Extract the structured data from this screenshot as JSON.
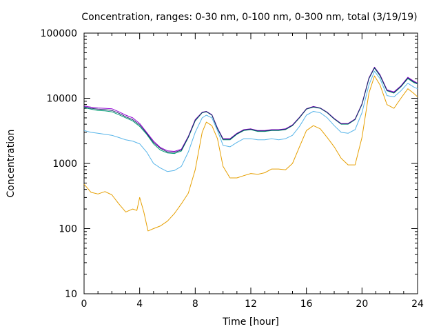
{
  "chart_data": {
    "type": "line",
    "title": "Concentration, ranges: 0-30 nm, 0-100 nm, 0-300 nm, total (3/19/19)",
    "xlabel": "Time [hour]",
    "ylabel": "Concentration",
    "xlim": [
      0,
      24
    ],
    "ylim": [
      10,
      100000
    ],
    "yscale": "log",
    "grid": false,
    "x_ticks": [
      0,
      4,
      8,
      12,
      16,
      20,
      24
    ],
    "x_tick_labels": [
      "0",
      "4",
      "8",
      "12",
      "16",
      "20",
      "24"
    ],
    "y_ticks": [
      10,
      100,
      1000,
      10000,
      100000
    ],
    "y_tick_labels": [
      "10",
      "100",
      "1000",
      "10000",
      "100000"
    ],
    "series": [
      {
        "color": "#e69f00",
        "points": [
          [
            0,
            480
          ],
          [
            0.5,
            360
          ],
          [
            1,
            340
          ],
          [
            1.5,
            370
          ],
          [
            2,
            330
          ],
          [
            2.5,
            240
          ],
          [
            3,
            180
          ],
          [
            3.5,
            200
          ],
          [
            3.8,
            190
          ],
          [
            4,
            300
          ],
          [
            4.3,
            180
          ],
          [
            4.6,
            92
          ],
          [
            5,
            100
          ],
          [
            5.5,
            110
          ],
          [
            6,
            130
          ],
          [
            6.5,
            170
          ],
          [
            7,
            240
          ],
          [
            7.5,
            350
          ],
          [
            8,
            800
          ],
          [
            8.5,
            3000
          ],
          [
            8.8,
            4300
          ],
          [
            9.2,
            3800
          ],
          [
            9.6,
            2400
          ],
          [
            10,
            900
          ],
          [
            10.5,
            600
          ],
          [
            11,
            600
          ],
          [
            11.5,
            650
          ],
          [
            12,
            700
          ],
          [
            12.5,
            680
          ],
          [
            13,
            720
          ],
          [
            13.5,
            820
          ],
          [
            14,
            820
          ],
          [
            14.5,
            800
          ],
          [
            15,
            1000
          ],
          [
            15.5,
            1800
          ],
          [
            16,
            3200
          ],
          [
            16.5,
            3800
          ],
          [
            17,
            3400
          ],
          [
            17.5,
            2500
          ],
          [
            18,
            1800
          ],
          [
            18.5,
            1200
          ],
          [
            19,
            950
          ],
          [
            19.5,
            950
          ],
          [
            20,
            2500
          ],
          [
            20.5,
            12000
          ],
          [
            20.9,
            22000
          ],
          [
            21.3,
            16000
          ],
          [
            21.8,
            8000
          ],
          [
            22.3,
            7000
          ],
          [
            22.8,
            10000
          ],
          [
            23.3,
            14000
          ],
          [
            23.7,
            12000
          ],
          [
            24,
            10500
          ]
        ]
      },
      {
        "color": "#56b4e9",
        "points": [
          [
            0,
            3200
          ],
          [
            0.5,
            3000
          ],
          [
            1,
            2900
          ],
          [
            1.5,
            2800
          ],
          [
            2,
            2700
          ],
          [
            2.5,
            2500
          ],
          [
            3,
            2300
          ],
          [
            3.5,
            2200
          ],
          [
            4,
            2000
          ],
          [
            4.5,
            1500
          ],
          [
            5,
            1000
          ],
          [
            5.5,
            850
          ],
          [
            6,
            750
          ],
          [
            6.5,
            780
          ],
          [
            7,
            900
          ],
          [
            7.5,
            1500
          ],
          [
            8,
            3000
          ],
          [
            8.5,
            5000
          ],
          [
            8.8,
            5500
          ],
          [
            9.2,
            5000
          ],
          [
            9.6,
            3200
          ],
          [
            10,
            1900
          ],
          [
            10.5,
            1800
          ],
          [
            11,
            2100
          ],
          [
            11.5,
            2400
          ],
          [
            12,
            2400
          ],
          [
            12.5,
            2300
          ],
          [
            13,
            2300
          ],
          [
            13.5,
            2400
          ],
          [
            14,
            2300
          ],
          [
            14.5,
            2400
          ],
          [
            15,
            2700
          ],
          [
            15.5,
            3700
          ],
          [
            16,
            5500
          ],
          [
            16.5,
            6300
          ],
          [
            17,
            6000
          ],
          [
            17.5,
            5000
          ],
          [
            18,
            3800
          ],
          [
            18.5,
            3000
          ],
          [
            19,
            2900
          ],
          [
            19.5,
            3300
          ],
          [
            20,
            6000
          ],
          [
            20.5,
            16000
          ],
          [
            20.9,
            26000
          ],
          [
            21.3,
            20000
          ],
          [
            21.8,
            11000
          ],
          [
            22.3,
            10500
          ],
          [
            22.8,
            13000
          ],
          [
            23.3,
            17000
          ],
          [
            23.7,
            15000
          ],
          [
            24,
            14000
          ]
        ]
      },
      {
        "color": "#009e73",
        "points": [
          [
            0,
            7200
          ],
          [
            0.5,
            6800
          ],
          [
            1,
            6500
          ],
          [
            1.5,
            6400
          ],
          [
            2,
            6200
          ],
          [
            2.5,
            5600
          ],
          [
            3,
            5000
          ],
          [
            3.5,
            4500
          ],
          [
            4,
            3700
          ],
          [
            4.5,
            2800
          ],
          [
            5,
            2000
          ],
          [
            5.5,
            1600
          ],
          [
            6,
            1450
          ],
          [
            6.5,
            1420
          ],
          [
            7,
            1550
          ],
          [
            7.5,
            2500
          ],
          [
            8,
            4500
          ],
          [
            8.5,
            6000
          ],
          [
            8.8,
            6200
          ],
          [
            9.2,
            5500
          ],
          [
            9.6,
            3400
          ],
          [
            10,
            2300
          ],
          [
            10.5,
            2300
          ],
          [
            11,
            2800
          ],
          [
            11.5,
            3200
          ],
          [
            12,
            3300
          ],
          [
            12.5,
            3100
          ],
          [
            13,
            3100
          ],
          [
            13.5,
            3200
          ],
          [
            14,
            3200
          ],
          [
            14.5,
            3300
          ],
          [
            15,
            3800
          ],
          [
            15.5,
            5000
          ],
          [
            16,
            6800
          ],
          [
            16.5,
            7300
          ],
          [
            17,
            7000
          ],
          [
            17.5,
            6000
          ],
          [
            18,
            4800
          ],
          [
            18.5,
            4000
          ],
          [
            19,
            4000
          ],
          [
            19.5,
            4700
          ],
          [
            20,
            8000
          ],
          [
            20.5,
            20000
          ],
          [
            20.9,
            29000
          ],
          [
            21.3,
            22000
          ],
          [
            21.8,
            13000
          ],
          [
            22.3,
            12000
          ],
          [
            22.8,
            15000
          ],
          [
            23.3,
            20000
          ],
          [
            23.7,
            17500
          ],
          [
            24,
            16500
          ]
        ]
      },
      {
        "color": "#9400d3",
        "points": [
          [
            0,
            7600
          ],
          [
            0.5,
            7300
          ],
          [
            1,
            7100
          ],
          [
            1.5,
            7000
          ],
          [
            2,
            6900
          ],
          [
            2.5,
            6200
          ],
          [
            3,
            5500
          ],
          [
            3.5,
            5000
          ],
          [
            4,
            4100
          ],
          [
            4.5,
            3000
          ],
          [
            5,
            2200
          ],
          [
            5.5,
            1750
          ],
          [
            6,
            1560
          ],
          [
            6.5,
            1530
          ],
          [
            7,
            1650
          ],
          [
            7.5,
            2600
          ],
          [
            8,
            4700
          ],
          [
            8.5,
            6100
          ],
          [
            8.8,
            6300
          ],
          [
            9.2,
            5600
          ],
          [
            9.6,
            3500
          ],
          [
            10,
            2400
          ],
          [
            10.5,
            2400
          ],
          [
            11,
            2900
          ],
          [
            11.5,
            3300
          ],
          [
            12,
            3400
          ],
          [
            12.5,
            3200
          ],
          [
            13,
            3200
          ],
          [
            13.5,
            3300
          ],
          [
            14,
            3300
          ],
          [
            14.5,
            3400
          ],
          [
            15,
            3900
          ],
          [
            15.5,
            5100
          ],
          [
            16,
            6900
          ],
          [
            16.5,
            7500
          ],
          [
            17,
            7100
          ],
          [
            17.5,
            6100
          ],
          [
            18,
            4900
          ],
          [
            18.5,
            4100
          ],
          [
            19,
            4100
          ],
          [
            19.5,
            4800
          ],
          [
            20,
            8200
          ],
          [
            20.5,
            20500
          ],
          [
            20.9,
            30000
          ],
          [
            21.3,
            23000
          ],
          [
            21.8,
            13500
          ],
          [
            22.3,
            12500
          ],
          [
            22.8,
            15500
          ],
          [
            23.3,
            21000
          ],
          [
            23.7,
            18500
          ],
          [
            24,
            17000
          ]
        ]
      },
      {
        "color": "#1f2a6b",
        "points": [
          [
            0,
            7400
          ],
          [
            0.5,
            7000
          ],
          [
            1,
            6800
          ],
          [
            1.5,
            6700
          ],
          [
            2,
            6500
          ],
          [
            2.5,
            5900
          ],
          [
            3,
            5200
          ],
          [
            3.5,
            4700
          ],
          [
            4,
            3900
          ],
          [
            4.5,
            2900
          ],
          [
            5,
            2100
          ],
          [
            5.5,
            1700
          ],
          [
            6,
            1500
          ],
          [
            6.5,
            1480
          ],
          [
            7,
            1600
          ],
          [
            7.5,
            2550
          ],
          [
            8,
            4600
          ],
          [
            8.5,
            6050
          ],
          [
            8.8,
            6250
          ],
          [
            9.2,
            5550
          ],
          [
            9.6,
            3450
          ],
          [
            10,
            2350
          ],
          [
            10.5,
            2350
          ],
          [
            11,
            2850
          ],
          [
            11.5,
            3250
          ],
          [
            12,
            3350
          ],
          [
            12.5,
            3150
          ],
          [
            13,
            3150
          ],
          [
            13.5,
            3250
          ],
          [
            14,
            3250
          ],
          [
            14.5,
            3350
          ],
          [
            15,
            3850
          ],
          [
            15.5,
            5050
          ],
          [
            16,
            6850
          ],
          [
            16.5,
            7400
          ],
          [
            17,
            7050
          ],
          [
            17.5,
            6050
          ],
          [
            18,
            4850
          ],
          [
            18.5,
            4050
          ],
          [
            19,
            4050
          ],
          [
            19.5,
            4750
          ],
          [
            20,
            8100
          ],
          [
            20.5,
            20200
          ],
          [
            20.9,
            29500
          ],
          [
            21.3,
            22500
          ],
          [
            21.8,
            13200
          ],
          [
            22.3,
            12200
          ],
          [
            22.8,
            15200
          ],
          [
            23.3,
            20500
          ],
          [
            23.7,
            18000
          ],
          [
            24,
            16800
          ]
        ]
      }
    ]
  }
}
